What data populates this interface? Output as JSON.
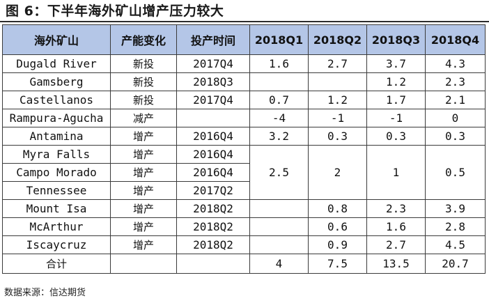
{
  "title": "图 6：下半年海外矿山增产压力较大",
  "table": {
    "headers": [
      "海外矿山",
      "产能变化",
      "投产时间",
      "2018Q1",
      "2018Q2",
      "2018Q3",
      "2018Q4"
    ],
    "rows": [
      {
        "mine": "Dugald River",
        "change": "新投",
        "start": "2017Q4",
        "q1": "1.6",
        "q2": "2.7",
        "q3": "3.7",
        "q4": "4.3"
      },
      {
        "mine": "Gamsberg",
        "change": "新投",
        "start": "2018Q3",
        "q1": "",
        "q2": "",
        "q3": "1.2",
        "q4": "2.3"
      },
      {
        "mine": "Castellanos",
        "change": "新投",
        "start": "2017Q4",
        "q1": "0.7",
        "q2": "1.2",
        "q3": "1.7",
        "q4": "2.1"
      },
      {
        "mine": "Rampura-Agucha",
        "change": "减产",
        "start": "",
        "q1": "-4",
        "q2": "-1",
        "q3": "-1",
        "q4": "0"
      },
      {
        "mine": "Antamina",
        "change": "增产",
        "start": "2016Q4",
        "q1": "3.2",
        "q2": "0.3",
        "q3": "0.3",
        "q4": "0.3"
      },
      {
        "mine": "Myra Falls",
        "change": "增产",
        "start": "2016Q4",
        "q1": "2.5",
        "q2": "2",
        "q3": "1",
        "q4": "0.5"
      },
      {
        "mine": "Campo Morado",
        "change": "增产",
        "start": "2016Q4"
      },
      {
        "mine": "Tennessee",
        "change": "增产",
        "start": "2017Q2"
      },
      {
        "mine": "Mount Isa",
        "change": "增产",
        "start": "2018Q2",
        "q1": "",
        "q2": "0.8",
        "q3": "2.3",
        "q4": "3.9"
      },
      {
        "mine": "McArthur",
        "change": "增产",
        "start": "2018Q2",
        "q1": "",
        "q2": "0.6",
        "q3": "1.6",
        "q4": "2.8"
      },
      {
        "mine": "Iscaycruz",
        "change": "增产",
        "start": "2018Q2",
        "q1": "",
        "q2": "0.9",
        "q3": "2.7",
        "q4": "4.5"
      }
    ],
    "total": {
      "label": "合计",
      "change": "",
      "start": "",
      "q1": "4",
      "q2": "7.5",
      "q3": "13.5",
      "q4": "20.7"
    }
  },
  "source": "数据来源：信达期货"
}
